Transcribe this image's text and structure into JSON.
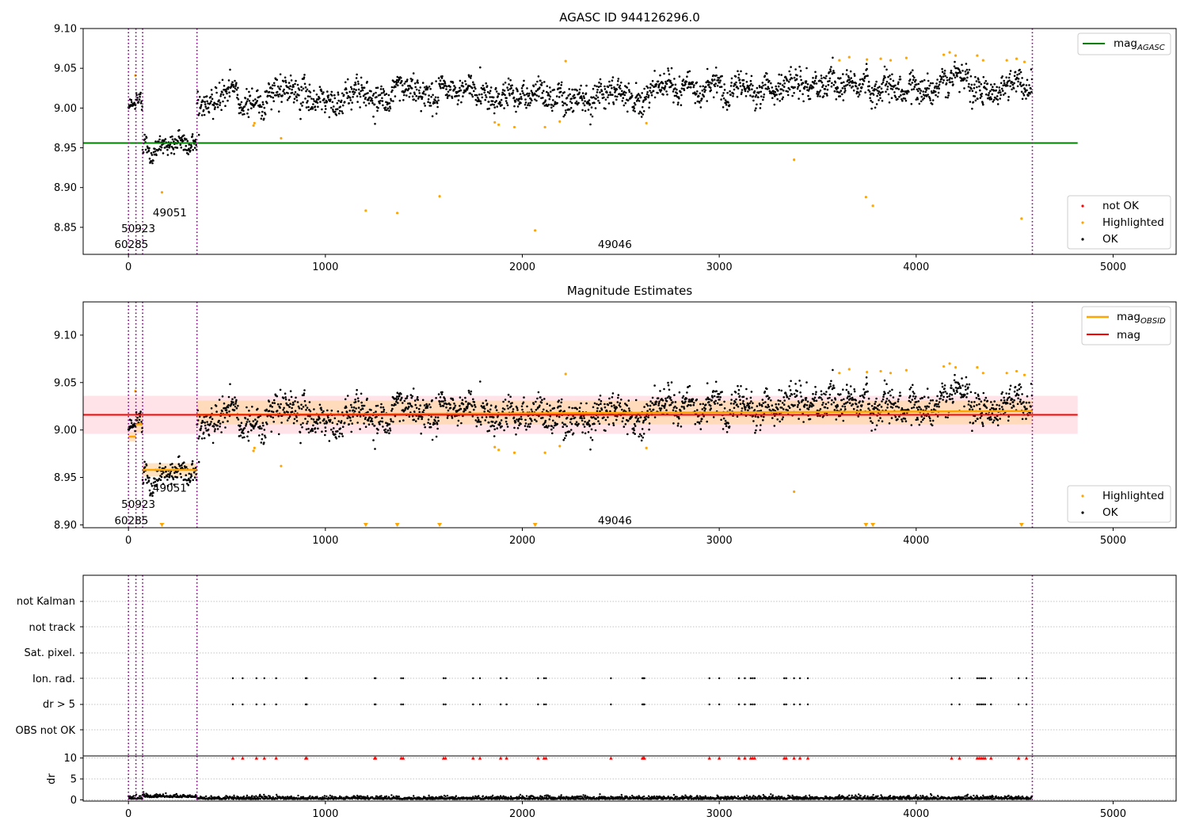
{
  "colors": {
    "ok": "#000000",
    "highlighted": "#ffa500",
    "not_ok": "#ff0000",
    "mag_agasc": "#008000",
    "mag_obsid": "#ffa500",
    "mag": "#ff0000",
    "obsid_line": "#800080",
    "band_mag": "#ffc0cb",
    "band_obsid": "#ffd7a8",
    "grid": "#b0b0b0"
  },
  "chart_data": [
    {
      "type": "scatter",
      "title": "AGASC ID 944126296.0",
      "xlim": [
        -230,
        5320
      ],
      "ylim": [
        8.816,
        9.1
      ],
      "xticks": [
        0,
        1000,
        2000,
        3000,
        4000,
        5000
      ],
      "yticks": [
        8.85,
        8.9,
        8.95,
        9.0,
        9.05,
        9.1
      ],
      "xtick_labels": [
        "0",
        "1000",
        "2000",
        "3000",
        "4000",
        "5000"
      ],
      "ytick_labels": [
        "8.85",
        "8.90",
        "8.95",
        "9.00",
        "9.05",
        "9.10"
      ],
      "grid": false,
      "obsid_boundaries": [
        0,
        38,
        72,
        348,
        4590
      ],
      "obsid_labels": [
        {
          "text": "60285",
          "x": 15,
          "y": 8.829
        },
        {
          "text": "50923",
          "x": 50,
          "y": 8.849
        },
        {
          "text": "49051",
          "x": 210,
          "y": 8.869
        },
        {
          "text": "49046",
          "x": 2470,
          "y": 8.829
        }
      ],
      "mag_agasc": {
        "value": 8.956,
        "x_range": [
          -230,
          4820
        ]
      },
      "segments": [
        {
          "x_range": [
            0,
            38
          ],
          "center": 8.996,
          "spread": 0.004
        },
        {
          "x_range": [
            38,
            72
          ],
          "center": 9.004,
          "spread": 0.009
        },
        {
          "x_range": [
            72,
            348
          ],
          "center": 8.957,
          "spread": 0.009
        },
        {
          "x_range": [
            348,
            4590
          ],
          "center_start": 9.013,
          "center_end": 9.032,
          "spread": 0.011
        }
      ],
      "highlighted_points": [
        {
          "x": 35,
          "y": 9.041
        },
        {
          "x": 170,
          "y": 8.894
        },
        {
          "x": 635,
          "y": 8.978
        },
        {
          "x": 640,
          "y": 8.981
        },
        {
          "x": 775,
          "y": 8.962
        },
        {
          "x": 1205,
          "y": 8.871
        },
        {
          "x": 1365,
          "y": 8.868
        },
        {
          "x": 1580,
          "y": 8.889
        },
        {
          "x": 1860,
          "y": 8.982
        },
        {
          "x": 1880,
          "y": 8.979
        },
        {
          "x": 1960,
          "y": 8.976
        },
        {
          "x": 2065,
          "y": 8.846
        },
        {
          "x": 2115,
          "y": 8.976
        },
        {
          "x": 2190,
          "y": 8.983
        },
        {
          "x": 2220,
          "y": 9.059
        },
        {
          "x": 2630,
          "y": 8.981
        },
        {
          "x": 3380,
          "y": 8.935
        },
        {
          "x": 3745,
          "y": 8.888
        },
        {
          "x": 3780,
          "y": 8.877
        },
        {
          "x": 4535,
          "y": 8.861
        },
        {
          "x": 3610,
          "y": 9.06
        },
        {
          "x": 3660,
          "y": 9.064
        },
        {
          "x": 3750,
          "y": 9.061
        },
        {
          "x": 3820,
          "y": 9.062
        },
        {
          "x": 3870,
          "y": 9.06
        },
        {
          "x": 3950,
          "y": 9.063
        },
        {
          "x": 4140,
          "y": 9.067
        },
        {
          "x": 4170,
          "y": 9.07
        },
        {
          "x": 4200,
          "y": 9.066
        },
        {
          "x": 4310,
          "y": 9.066
        },
        {
          "x": 4340,
          "y": 9.06
        },
        {
          "x": 4460,
          "y": 9.06
        },
        {
          "x": 4510,
          "y": 9.062
        },
        {
          "x": 4550,
          "y": 9.058
        }
      ],
      "legend_upper": [
        {
          "label": "mag",
          "subscript": "AGASC",
          "marker": "line",
          "color": "#008000"
        }
      ],
      "legend_lower": [
        {
          "label": "not OK",
          "marker": "dot",
          "color": "#ff0000"
        },
        {
          "label": "Highlighted",
          "marker": "dot",
          "color": "#ffa500"
        },
        {
          "label": "OK",
          "marker": "dot",
          "color": "#000000"
        }
      ]
    },
    {
      "type": "scatter",
      "title": "Magnitude Estimates",
      "xlim": [
        -230,
        5320
      ],
      "ylim": [
        8.897,
        9.135
      ],
      "xticks": [
        0,
        1000,
        2000,
        3000,
        4000,
        5000
      ],
      "yticks": [
        8.9,
        8.95,
        9.0,
        9.05,
        9.1
      ],
      "xtick_labels": [
        "0",
        "1000",
        "2000",
        "3000",
        "4000",
        "5000"
      ],
      "ytick_labels": [
        "8.90",
        "8.95",
        "9.00",
        "9.05",
        "9.10"
      ],
      "grid": false,
      "obsid_boundaries": [
        0,
        38,
        72,
        348,
        4590
      ],
      "obsid_labels": [
        {
          "text": "60285",
          "x": 15,
          "y": 8.905
        },
        {
          "text": "50923",
          "x": 50,
          "y": 8.922
        },
        {
          "text": "49051",
          "x": 210,
          "y": 8.939
        },
        {
          "text": "49046",
          "x": 2470,
          "y": 8.905
        }
      ],
      "mag": {
        "value": 9.016,
        "band": [
          8.996,
          9.036
        ],
        "x_range": [
          -230,
          4820
        ]
      },
      "mag_obsid": [
        {
          "x_range": [
            0,
            38
          ],
          "value": 8.993,
          "band": [
            8.988,
            8.998
          ]
        },
        {
          "x_range": [
            38,
            72
          ],
          "value": 9.006,
          "band": [
            8.998,
            9.014
          ]
        },
        {
          "x_range": [
            72,
            348
          ],
          "value": 8.958,
          "band": [
            8.951,
            8.965
          ]
        },
        {
          "x_range": [
            348,
            4590
          ],
          "value_start": 9.016,
          "value_end": 9.02,
          "band": [
            9.006,
            9.031
          ]
        }
      ],
      "clipped_points_x": [
        170,
        1205,
        1365,
        1580,
        2065,
        3745,
        3780,
        4535
      ],
      "legend_upper": [
        {
          "label": "mag",
          "subscript": "OBSID",
          "marker": "line",
          "color": "#ffa500"
        },
        {
          "label": "mag",
          "subscript": "",
          "marker": "line",
          "color": "#ff0000"
        }
      ],
      "legend_lower": [
        {
          "label": "Highlighted",
          "marker": "dot",
          "color": "#ffa500"
        },
        {
          "label": "OK",
          "marker": "dot",
          "color": "#000000"
        }
      ]
    },
    {
      "type": "scatter",
      "title": "",
      "xlim": [
        -230,
        5320
      ],
      "flag_rows": [
        "not Kalman",
        "not track",
        "Sat. pixel.",
        "Ion. rad.",
        "dr > 5",
        "OBS not OK"
      ],
      "flag_events_x": [
        530,
        580,
        650,
        690,
        750,
        900,
        905,
        1250,
        1255,
        1385,
        1395,
        1600,
        1610,
        1750,
        1785,
        1890,
        1920,
        2080,
        2110,
        2120,
        2450,
        2610,
        2615,
        2620,
        2950,
        3000,
        3100,
        3130,
        3160,
        3170,
        3180,
        3330,
        3340,
        3380,
        3410,
        3450,
        4180,
        4220,
        4310,
        4320,
        4330,
        4340,
        4350,
        4380,
        4520,
        4560
      ],
      "obsid_boundaries": [
        0,
        38,
        72,
        348,
        4590
      ],
      "xticks": [
        0,
        1000,
        2000,
        3000,
        4000,
        5000
      ],
      "xtick_labels": [
        "0",
        "1000",
        "2000",
        "3000",
        "4000",
        "5000"
      ]
    },
    {
      "type": "scatter",
      "title": "",
      "ylabel": "dr",
      "xlim": [
        -230,
        5320
      ],
      "ylim": [
        -0.3,
        10.5
      ],
      "yticks": [
        0,
        5,
        10
      ],
      "ytick_labels": [
        "0",
        "5",
        "10"
      ],
      "xticks": [
        0,
        1000,
        2000,
        3000,
        4000,
        5000
      ],
      "xtick_labels": [
        "0",
        "1000",
        "2000",
        "3000",
        "4000",
        "5000"
      ],
      "clip_value": 10,
      "grid": true,
      "obsid_boundaries": [
        0,
        38,
        72,
        348,
        4590
      ]
    }
  ]
}
